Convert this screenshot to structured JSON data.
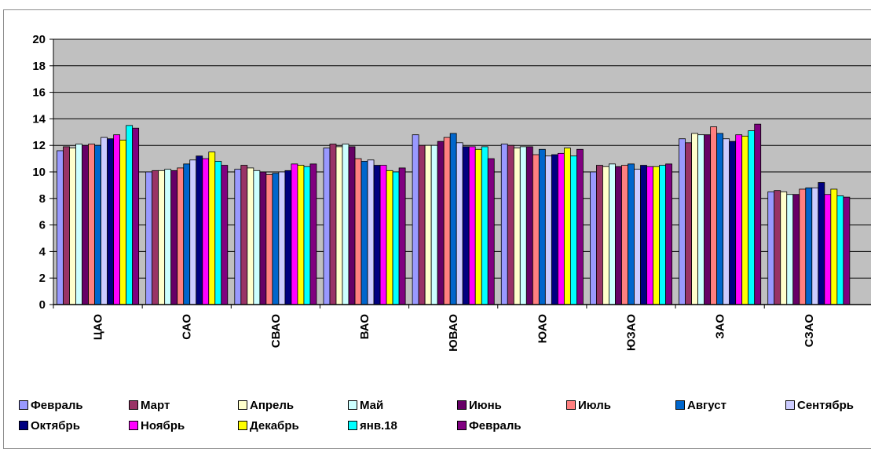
{
  "chart_data": {
    "type": "bar",
    "categories": [
      "ЦАО",
      "САО",
      "СВАО",
      "ВАО",
      "ЮВАО",
      "ЮАО",
      "ЮЗАО",
      "ЗАО",
      "СЗАО"
    ],
    "ylim": [
      0,
      20
    ],
    "yticks": [
      0,
      2,
      4,
      6,
      8,
      10,
      12,
      14,
      16,
      18,
      20
    ],
    "grid": true,
    "legend_position": "bottom",
    "series": [
      {
        "name": "Февраль",
        "color": "#9999ff",
        "values": [
          11.6,
          10.0,
          10.2,
          11.8,
          12.8,
          12.1,
          10.0,
          12.5,
          8.5
        ]
      },
      {
        "name": "Март",
        "color": "#993366",
        "values": [
          11.9,
          10.1,
          10.5,
          12.1,
          12.0,
          12.0,
          10.5,
          12.2,
          8.6
        ]
      },
      {
        "name": "Апрель",
        "color": "#ffffcc",
        "values": [
          11.8,
          10.1,
          10.3,
          11.9,
          12.0,
          11.8,
          10.4,
          12.9,
          8.5
        ]
      },
      {
        "name": "Май",
        "color": "#ccffff",
        "values": [
          12.1,
          10.2,
          10.1,
          12.1,
          12.0,
          11.9,
          10.6,
          12.8,
          8.3
        ]
      },
      {
        "name": "Июнь",
        "color": "#660066",
        "values": [
          12.0,
          10.1,
          10.0,
          11.9,
          12.3,
          11.9,
          10.4,
          12.8,
          8.3
        ]
      },
      {
        "name": "Июль",
        "color": "#ff8080",
        "values": [
          12.1,
          10.3,
          9.8,
          11.0,
          12.6,
          11.3,
          10.5,
          13.4,
          8.7
        ]
      },
      {
        "name": "Август",
        "color": "#0066cc",
        "values": [
          12.0,
          10.6,
          9.9,
          10.8,
          12.9,
          11.7,
          10.6,
          12.9,
          8.8
        ]
      },
      {
        "name": "Сентябрь",
        "color": "#ccccff",
        "values": [
          12.6,
          10.9,
          10.0,
          10.9,
          12.2,
          11.2,
          10.2,
          12.5,
          8.8
        ]
      },
      {
        "name": "Октябрь",
        "color": "#000080",
        "values": [
          12.5,
          11.2,
          10.1,
          10.5,
          11.9,
          11.3,
          10.5,
          12.3,
          9.2
        ]
      },
      {
        "name": "Ноябрь",
        "color": "#ff00ff",
        "values": [
          12.8,
          11.0,
          10.6,
          10.5,
          11.9,
          11.4,
          10.4,
          12.8,
          8.3
        ]
      },
      {
        "name": "Декабрь",
        "color": "#ffff00",
        "values": [
          12.4,
          11.5,
          10.5,
          10.1,
          11.7,
          11.8,
          10.4,
          12.7,
          8.7
        ]
      },
      {
        "name": "янв.18",
        "color": "#00ffff",
        "values": [
          13.5,
          10.8,
          10.4,
          10.0,
          11.9,
          11.2,
          10.5,
          13.1,
          8.2
        ]
      },
      {
        "name": "Февраль",
        "color": "#800080",
        "values": [
          13.3,
          10.5,
          10.6,
          10.3,
          11.0,
          11.7,
          10.6,
          13.6,
          8.1
        ]
      }
    ]
  }
}
